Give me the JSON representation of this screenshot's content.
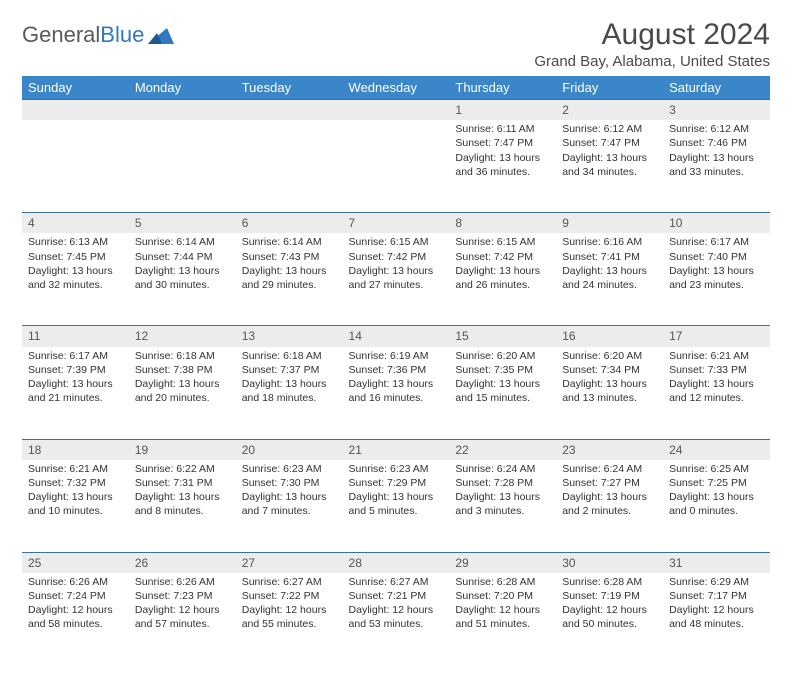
{
  "logo": {
    "part1": "General",
    "part2": "Blue"
  },
  "title": "August 2024",
  "location": "Grand Bay, Alabama, United States",
  "header_bg": "#3a86c8",
  "days_of_week": [
    "Sunday",
    "Monday",
    "Tuesday",
    "Wednesday",
    "Thursday",
    "Friday",
    "Saturday"
  ],
  "weeks": [
    [
      null,
      null,
      null,
      null,
      {
        "n": "1",
        "sr": "6:11 AM",
        "ss": "7:47 PM",
        "dl": "13 hours and 36 minutes."
      },
      {
        "n": "2",
        "sr": "6:12 AM",
        "ss": "7:47 PM",
        "dl": "13 hours and 34 minutes."
      },
      {
        "n": "3",
        "sr": "6:12 AM",
        "ss": "7:46 PM",
        "dl": "13 hours and 33 minutes."
      }
    ],
    [
      {
        "n": "4",
        "sr": "6:13 AM",
        "ss": "7:45 PM",
        "dl": "13 hours and 32 minutes."
      },
      {
        "n": "5",
        "sr": "6:14 AM",
        "ss": "7:44 PM",
        "dl": "13 hours and 30 minutes."
      },
      {
        "n": "6",
        "sr": "6:14 AM",
        "ss": "7:43 PM",
        "dl": "13 hours and 29 minutes."
      },
      {
        "n": "7",
        "sr": "6:15 AM",
        "ss": "7:42 PM",
        "dl": "13 hours and 27 minutes."
      },
      {
        "n": "8",
        "sr": "6:15 AM",
        "ss": "7:42 PM",
        "dl": "13 hours and 26 minutes."
      },
      {
        "n": "9",
        "sr": "6:16 AM",
        "ss": "7:41 PM",
        "dl": "13 hours and 24 minutes."
      },
      {
        "n": "10",
        "sr": "6:17 AM",
        "ss": "7:40 PM",
        "dl": "13 hours and 23 minutes."
      }
    ],
    [
      {
        "n": "11",
        "sr": "6:17 AM",
        "ss": "7:39 PM",
        "dl": "13 hours and 21 minutes."
      },
      {
        "n": "12",
        "sr": "6:18 AM",
        "ss": "7:38 PM",
        "dl": "13 hours and 20 minutes."
      },
      {
        "n": "13",
        "sr": "6:18 AM",
        "ss": "7:37 PM",
        "dl": "13 hours and 18 minutes."
      },
      {
        "n": "14",
        "sr": "6:19 AM",
        "ss": "7:36 PM",
        "dl": "13 hours and 16 minutes."
      },
      {
        "n": "15",
        "sr": "6:20 AM",
        "ss": "7:35 PM",
        "dl": "13 hours and 15 minutes."
      },
      {
        "n": "16",
        "sr": "6:20 AM",
        "ss": "7:34 PM",
        "dl": "13 hours and 13 minutes."
      },
      {
        "n": "17",
        "sr": "6:21 AM",
        "ss": "7:33 PM",
        "dl": "13 hours and 12 minutes."
      }
    ],
    [
      {
        "n": "18",
        "sr": "6:21 AM",
        "ss": "7:32 PM",
        "dl": "13 hours and 10 minutes."
      },
      {
        "n": "19",
        "sr": "6:22 AM",
        "ss": "7:31 PM",
        "dl": "13 hours and 8 minutes."
      },
      {
        "n": "20",
        "sr": "6:23 AM",
        "ss": "7:30 PM",
        "dl": "13 hours and 7 minutes."
      },
      {
        "n": "21",
        "sr": "6:23 AM",
        "ss": "7:29 PM",
        "dl": "13 hours and 5 minutes."
      },
      {
        "n": "22",
        "sr": "6:24 AM",
        "ss": "7:28 PM",
        "dl": "13 hours and 3 minutes."
      },
      {
        "n": "23",
        "sr": "6:24 AM",
        "ss": "7:27 PM",
        "dl": "13 hours and 2 minutes."
      },
      {
        "n": "24",
        "sr": "6:25 AM",
        "ss": "7:25 PM",
        "dl": "13 hours and 0 minutes."
      }
    ],
    [
      {
        "n": "25",
        "sr": "6:26 AM",
        "ss": "7:24 PM",
        "dl": "12 hours and 58 minutes."
      },
      {
        "n": "26",
        "sr": "6:26 AM",
        "ss": "7:23 PM",
        "dl": "12 hours and 57 minutes."
      },
      {
        "n": "27",
        "sr": "6:27 AM",
        "ss": "7:22 PM",
        "dl": "12 hours and 55 minutes."
      },
      {
        "n": "28",
        "sr": "6:27 AM",
        "ss": "7:21 PM",
        "dl": "12 hours and 53 minutes."
      },
      {
        "n": "29",
        "sr": "6:28 AM",
        "ss": "7:20 PM",
        "dl": "12 hours and 51 minutes."
      },
      {
        "n": "30",
        "sr": "6:28 AM",
        "ss": "7:19 PM",
        "dl": "12 hours and 50 minutes."
      },
      {
        "n": "31",
        "sr": "6:29 AM",
        "ss": "7:17 PM",
        "dl": "12 hours and 48 minutes."
      }
    ]
  ],
  "labels": {
    "sunrise": "Sunrise:",
    "sunset": "Sunset:",
    "daylight": "Daylight:"
  }
}
